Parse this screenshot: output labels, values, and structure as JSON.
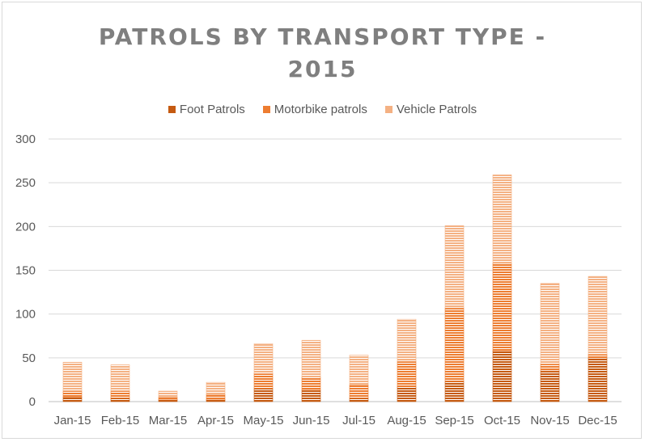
{
  "chart_data": {
    "type": "bar",
    "stacked": true,
    "title_line1": "PATROLS BY TRANSPORT TYPE -",
    "title_line2": "2015",
    "categories": [
      "Jan-15",
      "Feb-15",
      "Mar-15",
      "Apr-15",
      "May-15",
      "Jun-15",
      "Jul-15",
      "Aug-15",
      "Sep-15",
      "Oct-15",
      "Nov-15",
      "Dec-15"
    ],
    "series": [
      {
        "name": "Foot Patrols",
        "color": "#c55a11",
        "values": [
          5,
          4,
          2,
          2,
          15,
          13,
          4,
          17,
          23,
          58,
          35,
          50
        ]
      },
      {
        "name": "Motorbike patrols",
        "color": "#ed7d31",
        "values": [
          7,
          8,
          3,
          6,
          17,
          15,
          15,
          29,
          84,
          100,
          8,
          4
        ]
      },
      {
        "name": "Vehicle Patrols",
        "color": "#f4b183",
        "values": [
          33,
          30,
          7,
          14,
          34,
          42,
          34,
          48,
          94,
          101,
          92,
          89
        ]
      }
    ],
    "ylim": [
      0,
      300
    ],
    "yticks": [
      0,
      50,
      100,
      150,
      200,
      250,
      300
    ],
    "grid": true,
    "legend_position": "top"
  }
}
